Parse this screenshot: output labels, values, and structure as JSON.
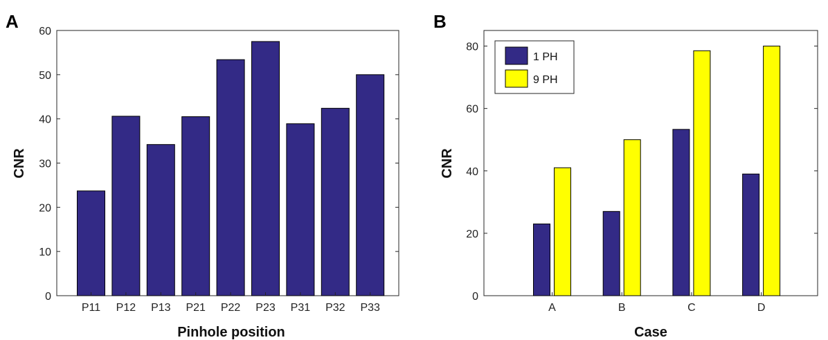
{
  "colors": {
    "navy": "#332a86",
    "yellow": "#ffff00",
    "axis": "#262626"
  },
  "chart_data": [
    {
      "panel_label": "A",
      "type": "bar",
      "title": "",
      "xlabel": "Pinhole position",
      "ylabel": "CNR",
      "ylim": [
        0,
        60
      ],
      "yticks": [
        0,
        10,
        20,
        30,
        40,
        50,
        60
      ],
      "categories": [
        "P11",
        "P12",
        "P13",
        "P21",
        "P22",
        "P23",
        "P31",
        "P32",
        "P33"
      ],
      "values": [
        23.7,
        40.6,
        34.2,
        40.5,
        53.4,
        57.5,
        38.9,
        42.4,
        50.0
      ],
      "grid": false,
      "legend": null
    },
    {
      "panel_label": "B",
      "type": "bar",
      "title": "",
      "xlabel": "Case",
      "ylabel": "CNR",
      "ylim": [
        0,
        85
      ],
      "yticks": [
        0,
        20,
        40,
        60,
        80
      ],
      "categories": [
        "A",
        "B",
        "C",
        "D"
      ],
      "series": [
        {
          "name": "1 PH",
          "values": [
            23.0,
            27.0,
            53.3,
            39.0
          ]
        },
        {
          "name": "9 PH",
          "values": [
            41.0,
            50.0,
            78.5,
            80.0
          ]
        }
      ],
      "grid": false,
      "legend": "top-left"
    }
  ]
}
